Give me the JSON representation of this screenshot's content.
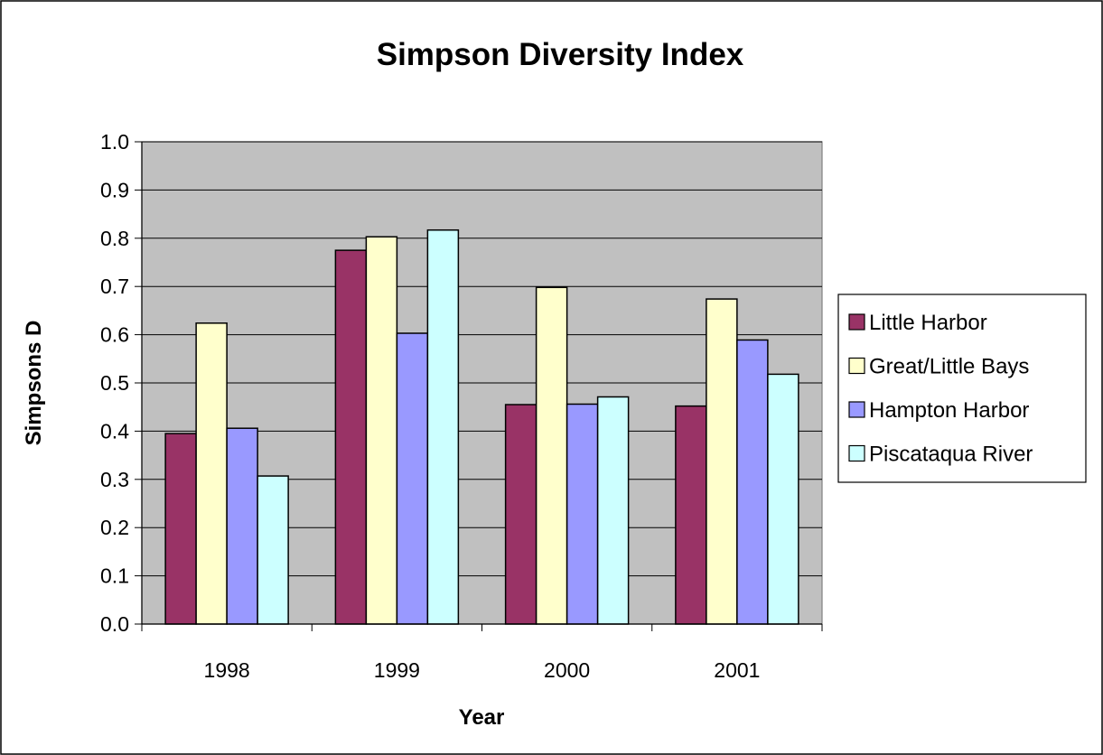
{
  "chart_data": {
    "type": "bar",
    "title": "Simpson Diversity Index",
    "xlabel": "Year",
    "ylabel": "Simpsons D",
    "categories": [
      "1998",
      "1999",
      "2000",
      "2001"
    ],
    "ylim": [
      0,
      1.0
    ],
    "yticks": [
      "0.0",
      "0.1",
      "0.2",
      "0.3",
      "0.4",
      "0.5",
      "0.6",
      "0.7",
      "0.8",
      "0.9",
      "1.0"
    ],
    "grid": true,
    "legend_position": "right",
    "plot_background": "#c0c0c0",
    "series": [
      {
        "name": "Little Harbor",
        "color": "#993366",
        "values": [
          0.395,
          0.775,
          0.455,
          0.452
        ]
      },
      {
        "name": "Great/Little Bays",
        "color": "#ffffcc",
        "values": [
          0.624,
          0.803,
          0.698,
          0.674
        ]
      },
      {
        "name": "Hampton Harbor",
        "color": "#9999ff",
        "values": [
          0.406,
          0.603,
          0.456,
          0.589
        ]
      },
      {
        "name": "Piscataqua River",
        "color": "#ccffff",
        "values": [
          0.307,
          0.817,
          0.471,
          0.518
        ]
      }
    ]
  }
}
